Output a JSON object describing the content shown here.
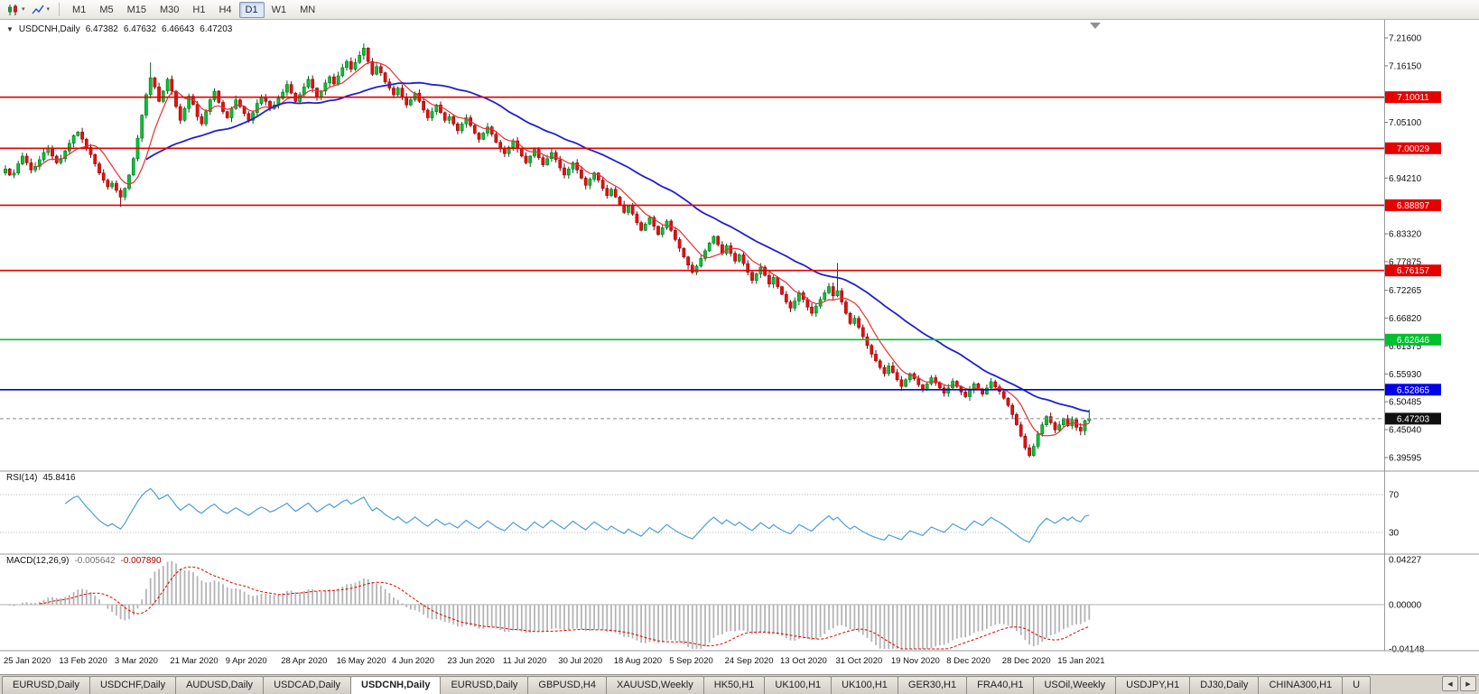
{
  "icons": {
    "caret_down": "▾",
    "title_caret": "▼",
    "tab_scroll_left": "◀",
    "tab_scroll_right": "▶"
  },
  "toolbar": {
    "timeframes": [
      "M1",
      "M5",
      "M15",
      "M30",
      "H1",
      "H4",
      "D1",
      "W1",
      "MN"
    ],
    "active_timeframe": "D1"
  },
  "chart": {
    "type": "candlestick",
    "symbol": "USDCNH",
    "period": "Daily",
    "title": {
      "symbol": "USDCNH,Daily",
      "open": "6.47382",
      "high": "6.47632",
      "low": "6.46643",
      "close": "6.47203"
    },
    "price_top": 7.216,
    "price_bottom": 6.39595,
    "y_axis_labels": [
      "7.21600",
      "7.16150",
      "7.05100",
      "6.94210",
      "6.83320",
      "6.77875",
      "6.72265",
      "6.66820",
      "6.61375",
      "6.55930",
      "6.50485",
      "6.45040",
      "6.39595"
    ],
    "h_lines": [
      {
        "value": 7.10011,
        "label": "7.10011",
        "color": "#E60000"
      },
      {
        "value": 7.00029,
        "label": "7.00029",
        "color": "#E60000"
      },
      {
        "value": 6.88897,
        "label": "6.88897",
        "color": "#E60000"
      },
      {
        "value": 6.76157,
        "label": "6.76157",
        "color": "#E60000"
      },
      {
        "value": 6.62646,
        "label": "6.62646",
        "color": "#00C030"
      },
      {
        "value": 6.52865,
        "label": "6.52865",
        "color": "#0000E6"
      }
    ],
    "current_price": {
      "value": 6.47203,
      "label": "6.47203",
      "color": "#101010"
    },
    "x_axis_labels": [
      "25 Jan 2020",
      "13 Feb 2020",
      "3 Mar 2020",
      "21 Mar 2020",
      "9 Apr 2020",
      "28 Apr 2020",
      "16 May 2020",
      "4 Jun 2020",
      "23 Jun 2020",
      "11 Jul 2020",
      "30 Jul 2020",
      "18 Aug 2020",
      "5 Sep 2020",
      "24 Sep 2020",
      "13 Oct 2020",
      "31 Oct 2020",
      "19 Nov 2020",
      "8 Dec 2020",
      "28 Dec 2020",
      "15 Jan 2021"
    ],
    "candles_per_label": 13,
    "first_open": 6.952,
    "closes": [
      6.96,
      6.948,
      6.952,
      6.97,
      6.985,
      6.972,
      6.958,
      6.965,
      6.978,
      6.992,
      7.0,
      6.985,
      6.972,
      6.98,
      6.995,
      7.01,
      7.025,
      7.032,
      7.018,
      7.002,
      6.988,
      6.97,
      6.952,
      6.938,
      6.925,
      6.932,
      6.918,
      6.905,
      6.922,
      6.948,
      6.98,
      7.02,
      7.065,
      7.105,
      7.138,
      7.12,
      7.092,
      7.112,
      7.135,
      7.112,
      7.082,
      7.055,
      7.078,
      7.102,
      7.086,
      7.062,
      7.048,
      7.072,
      7.095,
      7.112,
      7.09,
      7.072,
      7.06,
      7.078,
      7.095,
      7.082,
      7.068,
      7.055,
      7.07,
      7.088,
      7.1,
      7.092,
      7.078,
      7.085,
      7.098,
      7.11,
      7.125,
      7.108,
      7.092,
      7.105,
      7.12,
      7.135,
      7.118,
      7.1,
      7.112,
      7.128,
      7.14,
      7.126,
      7.142,
      7.158,
      7.17,
      7.155,
      7.168,
      7.182,
      7.196,
      7.17,
      7.145,
      7.16,
      7.148,
      7.13,
      7.118,
      7.105,
      7.118,
      7.1,
      7.085,
      7.095,
      7.108,
      7.092,
      7.075,
      7.06,
      7.072,
      7.085,
      7.07,
      7.055,
      7.062,
      7.048,
      7.035,
      7.048,
      7.06,
      7.045,
      7.03,
      7.018,
      7.03,
      7.042,
      7.028,
      7.012,
      7.0,
      6.99,
      7.002,
      7.015,
      7.0,
      6.985,
      6.972,
      6.985,
      6.998,
      6.982,
      6.968,
      6.98,
      6.992,
      6.978,
      6.962,
      6.948,
      6.96,
      6.972,
      6.958,
      6.942,
      6.928,
      6.94,
      6.952,
      6.938,
      6.922,
      6.908,
      6.92,
      6.905,
      6.89,
      6.875,
      6.888,
      6.872,
      6.855,
      6.84,
      6.852,
      6.865,
      6.848,
      6.832,
      6.845,
      6.858,
      6.84,
      6.822,
      6.805,
      6.788,
      6.772,
      6.758,
      6.77,
      6.785,
      6.8,
      6.815,
      6.828,
      6.812,
      6.795,
      6.81,
      6.795,
      6.78,
      6.792,
      6.775,
      6.758,
      6.742,
      6.755,
      6.768,
      6.752,
      6.735,
      6.748,
      6.73,
      6.715,
      6.7,
      6.688,
      6.702,
      6.718,
      6.705,
      6.69,
      6.678,
      6.692,
      6.705,
      6.718,
      6.73,
      6.712,
      6.722,
      6.7,
      6.678,
      6.658,
      6.668,
      6.65,
      6.632,
      6.615,
      6.598,
      6.585,
      6.572,
      6.56,
      6.575,
      6.562,
      6.548,
      6.535,
      6.548,
      6.56,
      6.55,
      6.538,
      6.528,
      6.54,
      6.552,
      6.542,
      6.532,
      6.522,
      6.532,
      6.545,
      6.535,
      6.524,
      6.515,
      6.528,
      6.54,
      6.53,
      6.52,
      6.532,
      6.544,
      6.534,
      6.525,
      6.512,
      6.498,
      6.48,
      6.46,
      6.438,
      6.415,
      6.4,
      6.418,
      6.442,
      6.46,
      6.476,
      6.464,
      6.45,
      6.46,
      6.472,
      6.458,
      6.47,
      6.455,
      6.448,
      6.468,
      6.472
    ],
    "wick_overrides": {
      "27": {
        "low": 6.886
      },
      "34": {
        "high": 7.168
      },
      "84": {
        "high": 7.205
      },
      "195": {
        "high": 6.776
      },
      "240": {
        "low": 6.396
      },
      "254": {
        "high": 6.49
      }
    },
    "up_color": "#00C432",
    "down_color": "#EE0C0C",
    "up_edge": "#006018",
    "down_edge": "#7A0000",
    "ma_fast": {
      "period": 8,
      "color": "#E83030"
    },
    "ma_slow": {
      "period": 34,
      "color": "#2020D0"
    }
  },
  "rsi": {
    "name": "RSI(14)",
    "value": "45.8416",
    "period": 14,
    "color": "#4A9EDE",
    "levels": [
      {
        "text": "70",
        "value": 70
      },
      {
        "text": "30",
        "value": 30
      }
    ]
  },
  "macd": {
    "name": "MACD(12,26,9)",
    "value_main": "-0.005642",
    "value_signal": "-0.007890",
    "fast": 12,
    "slow": 26,
    "signal": 9,
    "hist_color": "#B4B4B4",
    "signal_color": "#E00000",
    "axis_labels": [
      {
        "text": "0.04227",
        "value": 0.04227
      },
      {
        "text": "0.00000",
        "value": 0
      },
      {
        "text": "-0.04148",
        "value": -0.04148
      }
    ]
  },
  "tabs": {
    "active_index": 4,
    "items": [
      "EURUSD,Daily",
      "USDCHF,Daily",
      "AUDUSD,Daily",
      "USDCAD,Daily",
      "USDCNH,Daily",
      "EURUSD,Daily",
      "GBPUSD,H4",
      "XAUUSD,Weekly",
      "HK50,H1",
      "UK100,H1",
      "UK100,H1",
      "GER30,H1",
      "FRA40,H1",
      "USOil,Weekly",
      "USDJPY,H1",
      "DJ30,Daily",
      "CHINA300,H1",
      "U"
    ]
  }
}
